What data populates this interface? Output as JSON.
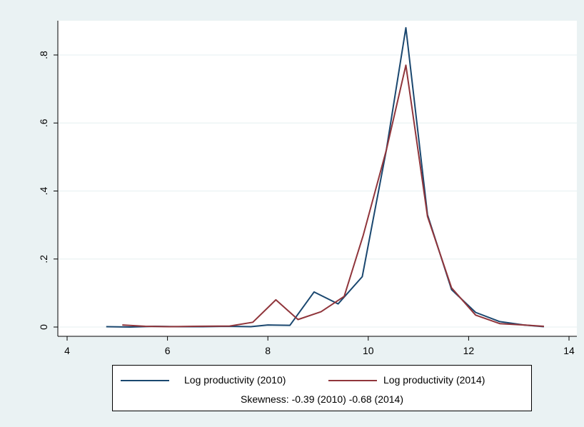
{
  "chart_data": {
    "type": "line",
    "title": "",
    "xlabel": "",
    "ylabel": "",
    "xlim": [
      4,
      14
    ],
    "ylim": [
      0,
      0.9
    ],
    "x_ticks": [
      4,
      6,
      8,
      10,
      12,
      14
    ],
    "x_tick_labels": [
      "4",
      "6",
      "8",
      "10",
      "12",
      "14"
    ],
    "y_ticks": [
      0,
      0.2,
      0.4,
      0.6,
      0.8
    ],
    "y_tick_labels": [
      "0",
      ".2",
      ".4",
      ".6",
      ".8"
    ],
    "grid": "horizontal",
    "legend_position": "bottom",
    "series": [
      {
        "name": "Log productivity (2010)",
        "color": "#1a476f",
        "x": [
          4.78,
          5.26,
          5.74,
          6.22,
          6.7,
          7.18,
          7.66,
          8.0,
          8.44,
          8.92,
          9.4,
          9.88,
          10.36,
          10.75,
          11.18,
          11.66,
          12.14,
          12.62,
          13.1,
          13.5
        ],
        "y": [
          0.001,
          0.0,
          0.002,
          0.001,
          0.001,
          0.002,
          0.001,
          0.006,
          0.005,
          0.103,
          0.068,
          0.148,
          0.52,
          0.88,
          0.33,
          0.11,
          0.043,
          0.016,
          0.006,
          0.001
        ]
      },
      {
        "name": "Log productivity (2014)",
        "color": "#90353b",
        "x": [
          5.1,
          5.56,
          6.04,
          6.52,
          7.24,
          7.7,
          8.16,
          8.6,
          9.06,
          9.52,
          9.9,
          10.36,
          10.75,
          11.18,
          11.66,
          12.14,
          12.62,
          13.1,
          13.5
        ],
        "y": [
          0.006,
          0.002,
          0.001,
          0.002,
          0.003,
          0.014,
          0.08,
          0.022,
          0.045,
          0.09,
          0.27,
          0.52,
          0.77,
          0.325,
          0.115,
          0.035,
          0.01,
          0.006,
          0.002
        ]
      }
    ],
    "note": "Skewness: -0.39 (2010) -0.68 (2014)"
  },
  "colors": {
    "background": "#eaf2f3",
    "plot_background": "#ffffff",
    "grid": "#eaf2f3",
    "series_2010": "#1a476f",
    "series_2014": "#90353b"
  }
}
